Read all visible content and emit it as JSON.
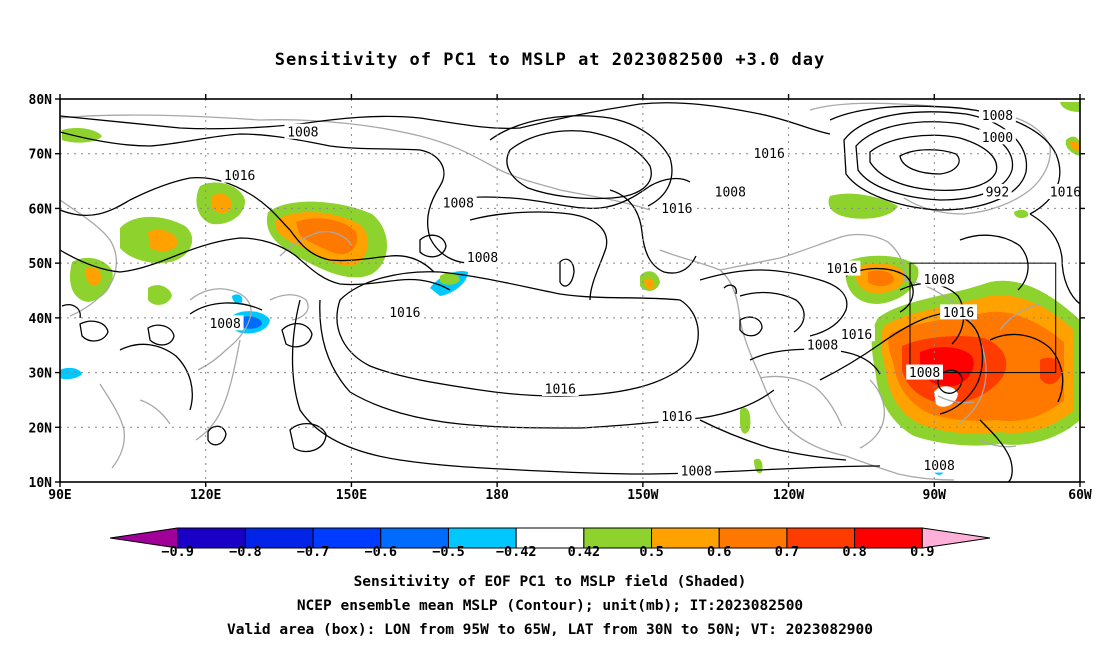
{
  "title": "Sensitivity of PC1 to MSLP at 2023082500 +3.0 day",
  "map": {
    "lon_range": [
      90,
      300
    ],
    "lat_range": [
      10,
      80
    ],
    "lat_labels": [
      "80N",
      "70N",
      "60N",
      "50N",
      "40N",
      "30N",
      "20N",
      "10N"
    ],
    "lat_values": [
      80,
      70,
      60,
      50,
      40,
      30,
      20,
      10
    ],
    "lon_labels": [
      "90E",
      "120E",
      "150E",
      "180",
      "150W",
      "120W",
      "90W",
      "60W"
    ],
    "lon_values": [
      90,
      120,
      150,
      180,
      210,
      240,
      270,
      300
    ],
    "valid_box": {
      "lon_from": 265,
      "lon_to": 295,
      "lat_from": 30,
      "lat_to": 50
    },
    "contour_labels": [
      {
        "text": "1008",
        "lon": 140,
        "lat": 74
      },
      {
        "text": "1016",
        "lon": 127,
        "lat": 66
      },
      {
        "text": "1008",
        "lon": 172,
        "lat": 61
      },
      {
        "text": "1008",
        "lon": 177,
        "lat": 51
      },
      {
        "text": "1016",
        "lon": 161,
        "lat": 41
      },
      {
        "text": "1008",
        "lon": 124,
        "lat": 39
      },
      {
        "text": "1016",
        "lon": 236,
        "lat": 70
      },
      {
        "text": "1008",
        "lon": 228,
        "lat": 63
      },
      {
        "text": "1016",
        "lon": 217,
        "lat": 60
      },
      {
        "text": "1016",
        "lon": 251,
        "lat": 49
      },
      {
        "text": "1016",
        "lon": 254,
        "lat": 37
      },
      {
        "text": "1008",
        "lon": 247,
        "lat": 35
      },
      {
        "text": "1016",
        "lon": 193,
        "lat": 27
      },
      {
        "text": "1016",
        "lon": 217,
        "lat": 22
      },
      {
        "text": "1008",
        "lon": 221,
        "lat": 12
      },
      {
        "text": "1008",
        "lon": 268,
        "lat": 30
      },
      {
        "text": "1008",
        "lon": 283,
        "lat": 77
      },
      {
        "text": "1000",
        "lon": 283,
        "lat": 73
      },
      {
        "text": "992",
        "lon": 283,
        "lat": 63
      },
      {
        "text": "1016",
        "lon": 297,
        "lat": 63
      },
      {
        "text": "1008",
        "lon": 271,
        "lat": 47
      },
      {
        "text": "1016",
        "lon": 275,
        "lat": 41
      },
      {
        "text": "1008",
        "lon": 271,
        "lat": 13
      }
    ]
  },
  "colorbar": {
    "colors": [
      "#a10098",
      "#1a00c6",
      "#0023e6",
      "#003cff",
      "#006cff",
      "#00c8ff",
      "#ffffff",
      "#8ed22e",
      "#ffa200",
      "#ff7800",
      "#ff3c00",
      "#ff0000",
      "#ffb0d8"
    ],
    "labels": [
      "−0.9",
      "−0.8",
      "−0.7",
      "−0.6",
      "−0.5",
      "−0.42",
      "0.42",
      "0.5",
      "0.6",
      "0.7",
      "0.8",
      "0.9"
    ]
  },
  "captions": {
    "line1": "Sensitivity of EOF PC1 to MSLP field (Shaded)",
    "line2": "NCEP ensemble mean MSLP (Contour); unit(mb); IT:2023082500",
    "line3": "Valid area (box): LON from 95W to 65W, LAT from 30N to 50N; VT: 2023082900"
  }
}
